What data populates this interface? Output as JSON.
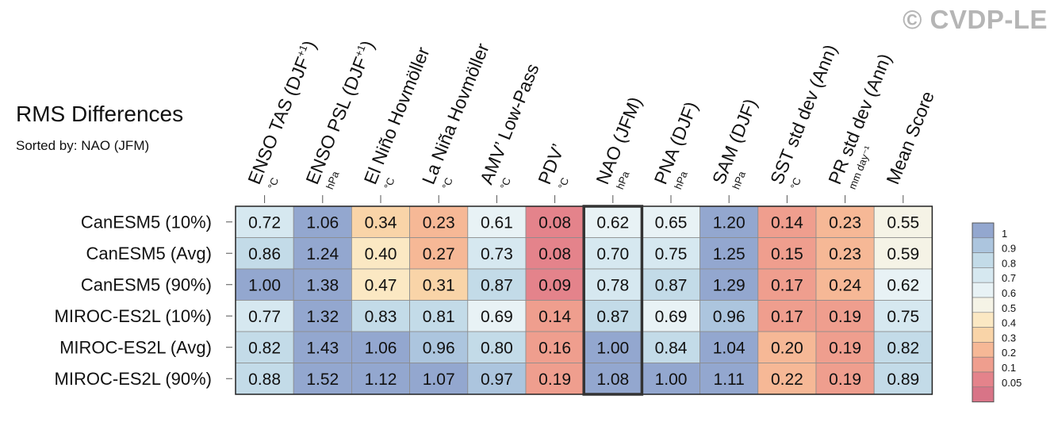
{
  "watermark": "© CVDP-LE",
  "title": "RMS Differences",
  "subtitle": "Sorted by: NAO (JFM)",
  "chart_data": {
    "type": "heatmap",
    "columns": [
      {
        "label": "ENSO TAS (DJF",
        "sup": "+1",
        "close": ")",
        "unit": "°C"
      },
      {
        "label": "ENSO PSL (DJF",
        "sup": "+1",
        "close": ")",
        "unit": "hPa"
      },
      {
        "label": "El Niño Hovmöller",
        "sup": "",
        "close": "",
        "unit": "°C"
      },
      {
        "label": "La Niña Hovmöller",
        "sup": "",
        "close": "",
        "unit": "°C"
      },
      {
        "label": "AMV’ Low-Pass",
        "sup": "",
        "close": "",
        "unit": "°C"
      },
      {
        "label": "PDV’",
        "sup": "",
        "close": "",
        "unit": "°C"
      },
      {
        "label": "NAO (JFM)",
        "sup": "",
        "close": "",
        "unit": "hPa"
      },
      {
        "label": "PNA (DJF)",
        "sup": "",
        "close": "",
        "unit": "hPa"
      },
      {
        "label": "SAM (DJF)",
        "sup": "",
        "close": "",
        "unit": "hPa"
      },
      {
        "label": "SST std dev (Ann)",
        "sup": "",
        "close": "",
        "unit": "°C"
      },
      {
        "label": "PR std dev (Ann)",
        "sup": "",
        "close": "",
        "unit": "mm day⁻¹"
      },
      {
        "label": "Mean Score",
        "sup": "",
        "close": "",
        "unit": ""
      }
    ],
    "rows": [
      "CanESM5 (10%)",
      "CanESM5 (Avg)",
      "CanESM5 (90%)",
      "MIROC-ES2L (10%)",
      "MIROC-ES2L (Avg)",
      "MIROC-ES2L (90%)"
    ],
    "values": [
      [
        0.72,
        1.06,
        0.34,
        0.23,
        0.61,
        0.08,
        0.62,
        0.65,
        1.2,
        0.14,
        0.23,
        0.55
      ],
      [
        0.86,
        1.24,
        0.4,
        0.27,
        0.73,
        0.08,
        0.7,
        0.75,
        1.25,
        0.15,
        0.23,
        0.59
      ],
      [
        1.0,
        1.38,
        0.47,
        0.31,
        0.87,
        0.09,
        0.78,
        0.87,
        1.29,
        0.17,
        0.24,
        0.62
      ],
      [
        0.77,
        1.32,
        0.83,
        0.81,
        0.69,
        0.14,
        0.87,
        0.69,
        0.96,
        0.17,
        0.19,
        0.75
      ],
      [
        0.82,
        1.43,
        1.06,
        0.96,
        0.8,
        0.16,
        1.0,
        0.84,
        1.04,
        0.2,
        0.19,
        0.82
      ],
      [
        0.88,
        1.52,
        1.12,
        1.07,
        0.97,
        0.19,
        1.08,
        1.0,
        1.11,
        0.22,
        0.19,
        0.89
      ]
    ],
    "highlight_column": "NAO (JFM)",
    "colorbar": {
      "labels": [
        "1",
        "0.9",
        "0.8",
        "0.7",
        "0.6",
        "0.5",
        "0.4",
        "0.3",
        "0.2",
        "0.1",
        "0.05"
      ],
      "colors": [
        "#93a7cf",
        "#acc5de",
        "#c3dbe8",
        "#d6e8f0",
        "#e8f2f5",
        "#f5f3e6",
        "#fbe8c3",
        "#f9d4a8",
        "#f6b896",
        "#ef9e8e",
        "#e4838b",
        "#d87487"
      ]
    }
  }
}
